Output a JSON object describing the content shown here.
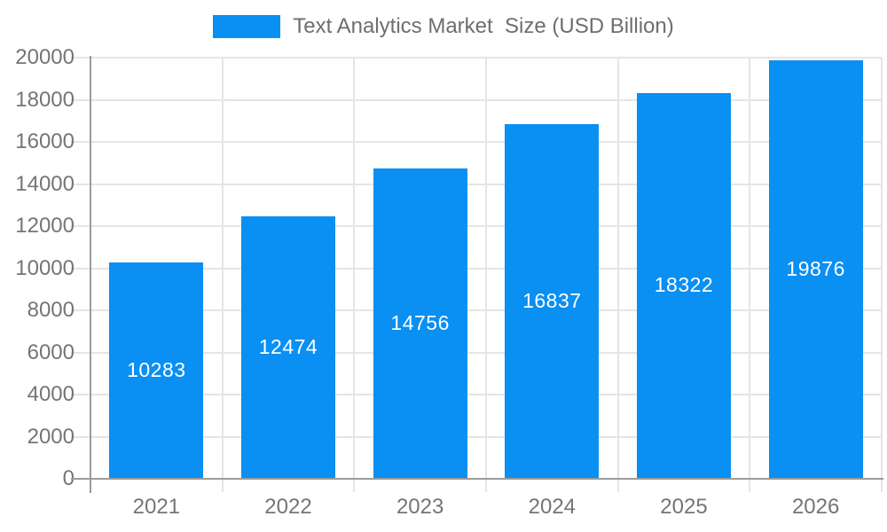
{
  "legend": {
    "label": "Text Analytics Market  Size (USD Billion)"
  },
  "chart_data": {
    "type": "bar",
    "title": "Text Analytics Market  Size (USD Billion)",
    "series_name": "Text Analytics Market  Size (USD Billion)",
    "categories": [
      "2021",
      "2022",
      "2023",
      "2024",
      "2025",
      "2026"
    ],
    "values": [
      10283,
      12474,
      14756,
      16837,
      18322,
      19876
    ],
    "xlabel": "",
    "ylabel": "",
    "ylim": [
      0,
      20000
    ],
    "ytick_step": 2000,
    "yticks": [
      0,
      2000,
      4000,
      6000,
      8000,
      10000,
      12000,
      14000,
      16000,
      18000,
      20000
    ],
    "bar_labels_visible": true,
    "grid": true,
    "legend_position": "top",
    "colors": {
      "bar": "#0a8ff2",
      "bar_label": "#ffffff",
      "grid": "#e5e5e5",
      "axis": "#9b9b9b",
      "tick_label": "#757575",
      "legend_text": "#6e6e6e",
      "background": "#ffffff"
    }
  }
}
